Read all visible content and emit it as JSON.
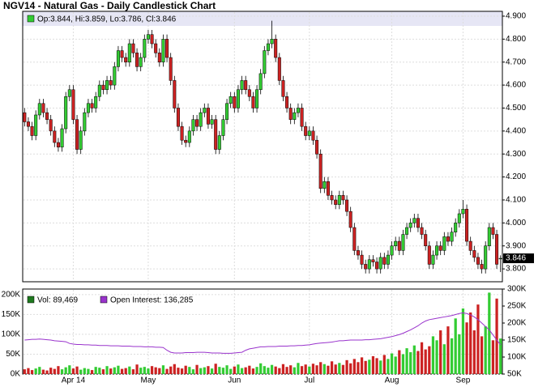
{
  "chart_data": [
    {
      "type": "candlestick",
      "title": "NGV14 - Natural Gas - Daily Candlestick Chart",
      "legend_text": "Op:3.844, Hi:3.859, Lo:3.786, Cl:3.846",
      "categories": [
        null,
        null,
        null,
        null,
        null,
        null,
        null,
        null,
        null,
        null,
        null,
        null,
        null,
        "Apr 14",
        null,
        null,
        null,
        null,
        null,
        null,
        null,
        null,
        null,
        null,
        null,
        null,
        null,
        null,
        null,
        null,
        null,
        null,
        null,
        "May",
        null,
        null,
        null,
        null,
        null,
        null,
        null,
        null,
        null,
        null,
        null,
        null,
        null,
        null,
        null,
        null,
        null,
        null,
        null,
        null,
        null,
        null,
        "Jun",
        null,
        null,
        null,
        null,
        null,
        null,
        null,
        null,
        null,
        null,
        null,
        null,
        null,
        null,
        null,
        null,
        null,
        null,
        null,
        "Jul",
        null,
        null,
        null,
        null,
        null,
        null,
        null,
        null,
        null,
        null,
        null,
        null,
        null,
        null,
        null,
        null,
        null,
        null,
        null,
        null,
        null,
        "Aug",
        null,
        null,
        null,
        null,
        null,
        null,
        null,
        null,
        null,
        null,
        null,
        null,
        null,
        null,
        null,
        null,
        null,
        null,
        "Sep",
        null,
        null,
        null,
        null,
        null,
        null,
        null,
        null,
        null,
        null
      ],
      "open": [
        4.48,
        4.44,
        4.42,
        4.38,
        4.47,
        4.52,
        4.48,
        4.45,
        4.4,
        4.35,
        4.33,
        4.41,
        4.55,
        4.58,
        4.45,
        4.32,
        4.4,
        4.48,
        4.52,
        4.5,
        4.55,
        4.6,
        4.58,
        4.62,
        4.6,
        4.68,
        4.75,
        4.72,
        4.7,
        4.78,
        4.74,
        4.68,
        4.72,
        4.8,
        4.82,
        4.78,
        4.74,
        4.7,
        4.8,
        4.72,
        4.62,
        4.5,
        4.42,
        4.36,
        4.35,
        4.4,
        4.45,
        4.42,
        4.48,
        4.5,
        4.43,
        4.45,
        4.32,
        4.38,
        4.45,
        4.52,
        4.55,
        4.5,
        4.58,
        4.62,
        4.58,
        4.55,
        4.5,
        4.58,
        4.65,
        4.75,
        4.78,
        4.8,
        4.72,
        4.62,
        4.55,
        4.5,
        4.45,
        4.48,
        4.5,
        4.42,
        4.38,
        4.4,
        4.36,
        4.3,
        4.15,
        4.18,
        4.12,
        4.1,
        4.08,
        4.12,
        4.1,
        4.05,
        3.98,
        3.88,
        3.86,
        3.82,
        3.8,
        3.84,
        3.83,
        3.8,
        3.85,
        3.82,
        3.86,
        3.9,
        3.92,
        3.88,
        3.95,
        3.98,
        4.0,
        4.02,
        3.98,
        3.95,
        3.9,
        3.82,
        3.86,
        3.9,
        3.88,
        3.94,
        3.92,
        3.96,
        4.0,
        4.04,
        4.06,
        3.92,
        3.88,
        3.85,
        3.82,
        3.8,
        3.9,
        3.98,
        3.95,
        3.844
      ],
      "high": [
        4.5,
        4.46,
        4.44,
        4.49,
        4.54,
        4.54,
        4.5,
        4.47,
        4.42,
        4.37,
        4.43,
        4.57,
        4.6,
        4.6,
        4.47,
        4.42,
        4.5,
        4.54,
        4.54,
        4.57,
        4.62,
        4.62,
        4.64,
        4.64,
        4.7,
        4.77,
        4.77,
        4.74,
        4.8,
        4.8,
        4.76,
        4.74,
        4.82,
        4.84,
        4.84,
        4.8,
        4.76,
        4.82,
        4.82,
        4.74,
        4.64,
        4.52,
        4.44,
        4.38,
        4.42,
        4.47,
        4.47,
        4.5,
        4.52,
        4.52,
        4.47,
        4.47,
        4.4,
        4.47,
        4.54,
        4.57,
        4.57,
        4.6,
        4.64,
        4.64,
        4.6,
        4.57,
        4.6,
        4.67,
        4.77,
        4.8,
        4.88,
        4.82,
        4.74,
        4.64,
        4.57,
        4.52,
        4.5,
        4.52,
        4.52,
        4.44,
        4.42,
        4.42,
        4.38,
        4.32,
        4.2,
        4.2,
        4.14,
        4.12,
        4.14,
        4.14,
        4.12,
        4.07,
        4.0,
        3.9,
        3.88,
        3.84,
        3.86,
        3.86,
        3.85,
        3.87,
        3.87,
        3.88,
        3.92,
        3.94,
        3.94,
        3.97,
        4.0,
        4.02,
        4.04,
        4.04,
        4.0,
        3.97,
        3.92,
        3.88,
        3.92,
        3.92,
        3.96,
        3.96,
        3.98,
        4.02,
        4.06,
        4.1,
        4.08,
        3.94,
        3.9,
        3.87,
        3.84,
        3.92,
        4.0,
        4.0,
        3.97,
        3.859
      ],
      "low": [
        4.42,
        4.4,
        4.36,
        4.36,
        4.45,
        4.46,
        4.43,
        4.38,
        4.33,
        4.31,
        4.31,
        4.39,
        4.53,
        4.43,
        4.3,
        4.3,
        4.38,
        4.46,
        4.48,
        4.48,
        4.53,
        4.56,
        4.56,
        4.58,
        4.58,
        4.66,
        4.7,
        4.68,
        4.68,
        4.72,
        4.66,
        4.66,
        4.7,
        4.78,
        4.76,
        4.72,
        4.68,
        4.68,
        4.7,
        4.6,
        4.48,
        4.4,
        4.34,
        4.33,
        4.33,
        4.38,
        4.4,
        4.4,
        4.46,
        4.41,
        4.41,
        4.3,
        4.3,
        4.36,
        4.43,
        4.5,
        4.48,
        4.48,
        4.56,
        4.56,
        4.53,
        4.48,
        4.48,
        4.56,
        4.63,
        4.73,
        4.76,
        4.7,
        4.6,
        4.53,
        4.48,
        4.43,
        4.43,
        4.46,
        4.4,
        4.36,
        4.36,
        4.34,
        4.28,
        4.13,
        4.13,
        4.1,
        4.08,
        4.06,
        4.06,
        4.08,
        4.03,
        3.96,
        3.86,
        3.84,
        3.8,
        3.78,
        3.78,
        3.81,
        3.78,
        3.78,
        3.8,
        3.8,
        3.84,
        3.88,
        3.86,
        3.86,
        3.93,
        3.96,
        3.98,
        3.96,
        3.93,
        3.88,
        3.8,
        3.8,
        3.84,
        3.86,
        3.86,
        3.9,
        3.9,
        3.94,
        3.98,
        4.02,
        3.9,
        3.86,
        3.83,
        3.8,
        3.78,
        3.78,
        3.88,
        3.93,
        3.8,
        3.786
      ],
      "close": [
        4.44,
        4.42,
        4.38,
        4.47,
        4.52,
        4.48,
        4.45,
        4.4,
        4.35,
        4.33,
        4.41,
        4.55,
        4.58,
        4.45,
        4.32,
        4.4,
        4.48,
        4.52,
        4.5,
        4.55,
        4.6,
        4.58,
        4.62,
        4.6,
        4.68,
        4.75,
        4.72,
        4.7,
        4.78,
        4.74,
        4.68,
        4.72,
        4.8,
        4.82,
        4.78,
        4.74,
        4.7,
        4.8,
        4.72,
        4.62,
        4.5,
        4.42,
        4.36,
        4.35,
        4.4,
        4.45,
        4.42,
        4.48,
        4.5,
        4.43,
        4.45,
        4.32,
        4.38,
        4.45,
        4.52,
        4.55,
        4.5,
        4.58,
        4.62,
        4.58,
        4.55,
        4.5,
        4.58,
        4.65,
        4.75,
        4.78,
        4.8,
        4.72,
        4.62,
        4.55,
        4.5,
        4.45,
        4.48,
        4.5,
        4.42,
        4.38,
        4.4,
        4.36,
        4.3,
        4.15,
        4.18,
        4.12,
        4.1,
        4.08,
        4.12,
        4.1,
        4.05,
        3.98,
        3.88,
        3.86,
        3.82,
        3.8,
        3.84,
        3.83,
        3.8,
        3.85,
        3.82,
        3.86,
        3.9,
        3.92,
        3.88,
        3.95,
        3.98,
        4.0,
        4.02,
        3.98,
        3.95,
        3.9,
        3.82,
        3.86,
        3.9,
        3.88,
        3.94,
        3.92,
        3.96,
        4.0,
        4.04,
        4.06,
        3.92,
        3.88,
        3.85,
        3.82,
        3.8,
        3.9,
        3.98,
        3.95,
        3.82,
        3.846
      ],
      "up_color": "#33cc33",
      "down_color": "#cc2222",
      "ylim": [
        3.744,
        4.921
      ],
      "yticks": [
        {
          "value": 3.8,
          "label": "3.800"
        },
        {
          "value": 3.9,
          "label": "3.900"
        },
        {
          "value": 4,
          "label": "4.000"
        },
        {
          "value": 4.1,
          "label": "4.100"
        },
        {
          "value": 4.2,
          "label": "4.200"
        },
        {
          "value": 4.3,
          "label": "4.300"
        },
        {
          "value": 4.4,
          "label": "4.400"
        },
        {
          "value": 4.5,
          "label": "4.500"
        },
        {
          "value": 4.6,
          "label": "4.600"
        },
        {
          "value": 4.7,
          "label": "4.700"
        },
        {
          "value": 4.8,
          "label": "4.800"
        },
        {
          "value": 4.9,
          "label": "4.900"
        }
      ],
      "grid": true
    },
    {
      "type": "volume",
      "series": [
        {
          "name": "Vol: 89,469",
          "color": "#1f7a1f",
          "values": [
            12000,
            15000,
            10000,
            14000,
            18000,
            11000,
            9000,
            16000,
            13000,
            20000,
            12000,
            17000,
            22000,
            14000,
            19000,
            11000,
            15000,
            13000,
            10000,
            18000,
            16000,
            12000,
            20000,
            14000,
            17000,
            21000,
            13000,
            15000,
            19000,
            12000,
            24000,
            16000,
            18000,
            14000,
            20000,
            17000,
            15000,
            22000,
            13000,
            19000,
            25000,
            16000,
            14000,
            21000,
            18000,
            12000,
            23000,
            15000,
            17000,
            20000,
            14000,
            26000,
            18000,
            16000,
            22000,
            13000,
            19000,
            24000,
            15000,
            17000,
            21000,
            14000,
            18000,
            27000,
            20000,
            16000,
            23000,
            19000,
            15000,
            25000,
            18000,
            22000,
            17000,
            28000,
            20000,
            24000,
            19000,
            26000,
            22000,
            30000,
            25000,
            21000,
            32000,
            24000,
            28000,
            23000,
            35000,
            27000,
            38000,
            30000,
            42000,
            33000,
            36000,
            45000,
            40000,
            34000,
            48000,
            38000,
            52000,
            44000,
            60000,
            50000,
            65000,
            55000,
            72000,
            58000,
            80000,
            62000,
            70000,
            95000,
            85000,
            110000,
            75000,
            120000,
            90000,
            140000,
            100000,
            165000,
            130000,
            155000,
            110000,
            175000,
            95000,
            120000,
            205000,
            85000,
            190000,
            89469
          ]
        },
        {
          "name": "Open Interest: 136,285",
          "color": "#9933cc",
          "axis": "y2",
          "values": [
            150000,
            151000,
            152000,
            152000,
            153000,
            152000,
            151000,
            150000,
            148000,
            147000,
            146000,
            145000,
            140000,
            138000,
            137000,
            137000,
            136000,
            136000,
            135000,
            135000,
            134000,
            134000,
            134000,
            133000,
            133000,
            133000,
            132000,
            132000,
            132000,
            131000,
            131000,
            131000,
            130000,
            130000,
            130000,
            129000,
            129000,
            128000,
            120000,
            114000,
            112000,
            112000,
            112000,
            113000,
            113000,
            113000,
            114000,
            114000,
            114000,
            113000,
            112000,
            112000,
            112000,
            111000,
            111000,
            111000,
            112000,
            113000,
            114000,
            120000,
            124000,
            126000,
            128000,
            130000,
            130000,
            131000,
            131000,
            131000,
            132000,
            132000,
            132000,
            133000,
            133000,
            134000,
            134000,
            135000,
            136000,
            138000,
            140000,
            141000,
            142000,
            143000,
            144000,
            146000,
            148000,
            148000,
            149000,
            150000,
            150000,
            150000,
            150000,
            151000,
            151000,
            152000,
            153000,
            154000,
            156000,
            158000,
            160000,
            163000,
            166000,
            170000,
            175000,
            180000,
            186000,
            192000,
            200000,
            206000,
            210000,
            212000,
            214000,
            216000,
            218000,
            220000,
            222000,
            225000,
            228000,
            230000,
            228000,
            224000,
            218000,
            210000,
            200000,
            190000,
            180000,
            165000,
            150000,
            136285
          ]
        }
      ],
      "ylim": [
        0,
        214000
      ],
      "yticks": [
        {
          "value": 0,
          "label": "0K"
        },
        {
          "value": 50000,
          "label": "50K"
        },
        {
          "value": 100000,
          "label": "100K"
        },
        {
          "value": 150000,
          "label": "150K"
        },
        {
          "value": 200000,
          "label": "200K"
        }
      ],
      "y2lim": [
        50000,
        300000
      ],
      "y2ticks": [
        {
          "value": 50000,
          "label": "50K"
        },
        {
          "value": 100000,
          "label": "100K"
        },
        {
          "value": 150000,
          "label": "150K"
        },
        {
          "value": 200000,
          "label": "200K"
        },
        {
          "value": 250000,
          "label": "250K"
        },
        {
          "value": 300000,
          "label": "300K"
        }
      ],
      "grid": true
    }
  ]
}
